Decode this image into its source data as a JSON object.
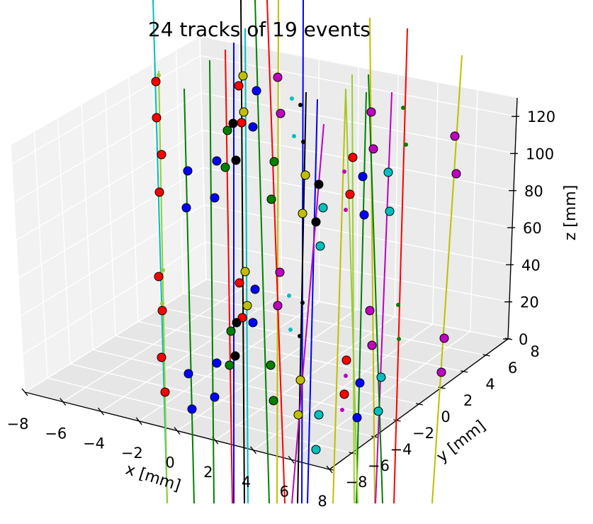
{
  "chart_data": {
    "type": "scatter",
    "subtype": "3d-tracks",
    "title": "24 tracks of 19 events",
    "xlabel": "x [mm]",
    "ylabel": "y [mm]",
    "zlabel": "z [mm]",
    "xlim": [
      -8,
      8
    ],
    "ylim": [
      -8,
      8
    ],
    "zlim": [
      0,
      130
    ],
    "xticks": [
      "−8",
      "−6",
      "−4",
      "−2",
      "0",
      "2",
      "4",
      "6",
      "8"
    ],
    "yticks": [
      "−8",
      "−6",
      "−4",
      "−2",
      "0",
      "2",
      "4",
      "6",
      "8"
    ],
    "zticks": [
      "0",
      "20",
      "40",
      "60",
      "80",
      "100",
      "120"
    ],
    "grid": true,
    "pane_color": "#f2f2f2",
    "tracks": [
      {
        "color": "#00bfbf",
        "top": [
          216,
          0
        ],
        "bottom": [
          236,
          710
        ]
      },
      {
        "color": "#9acd32",
        "top": [
          224,
          100
        ],
        "bottom": [
          236,
          710
        ]
      },
      {
        "color": "#008000",
        "top": [
          260,
          125
        ],
        "bottom": [
          274,
          710
        ]
      },
      {
        "color": "#008000",
        "top": [
          296,
          85
        ],
        "bottom": [
          302,
          710
        ]
      },
      {
        "color": "#ff0000",
        "top": [
          318,
          70
        ],
        "bottom": [
          328,
          710
        ]
      },
      {
        "color": "#0000ff",
        "top": [
          330,
          60
        ],
        "bottom": [
          330,
          710
        ]
      },
      {
        "color": "#000000",
        "top": [
          340,
          0
        ],
        "bottom": [
          345,
          710
        ]
      },
      {
        "color": "#00bfbf",
        "top": [
          346,
          40
        ],
        "bottom": [
          350,
          710
        ]
      },
      {
        "color": "#008000",
        "top": [
          360,
          0
        ],
        "bottom": [
          380,
          710
        ]
      },
      {
        "color": "#bfbf00",
        "top": [
          393,
          0
        ],
        "bottom": [
          391,
          710
        ]
      },
      {
        "color": "#ff0000",
        "top": [
          377,
          0
        ],
        "bottom": [
          402,
          710
        ]
      },
      {
        "color": "#0000ff",
        "top": [
          428,
          0
        ],
        "bottom": [
          426,
          710
        ]
      },
      {
        "color": "#000000",
        "top": [
          432,
          130
        ],
        "bottom": [
          420,
          710
        ]
      },
      {
        "color": "#0000ff",
        "top": [
          448,
          140
        ],
        "bottom": [
          434,
          710
        ]
      },
      {
        "color": "#bf00bf",
        "top": [
          457,
          175
        ],
        "bottom": [
          412,
          710
        ]
      },
      {
        "color": "#bfbf00",
        "top": [
          488,
          125
        ],
        "bottom": [
          470,
          710
        ]
      },
      {
        "color": "#9acd32",
        "top": [
          497,
          105
        ],
        "bottom": [
          500,
          710
        ]
      },
      {
        "color": "#008000",
        "top": [
          517,
          130
        ],
        "bottom": [
          503,
          710
        ]
      },
      {
        "color": "#bfbf00",
        "top": [
          522,
          25
        ],
        "bottom": [
          529,
          710
        ]
      },
      {
        "color": "#bf00bf",
        "top": [
          553,
          130
        ],
        "bottom": [
          530,
          710
        ]
      },
      {
        "color": "#ff0000",
        "top": [
          575,
          40
        ],
        "bottom": [
          556,
          710
        ]
      },
      {
        "color": "#008000",
        "top": [
          520,
          105
        ],
        "bottom": [
          540,
          710
        ]
      },
      {
        "color": "#bfbf00",
        "top": [
          652,
          78
        ],
        "bottom": [
          610,
          710
        ]
      },
      {
        "color": "#9acd32",
        "top": [
          488,
          125
        ],
        "bottom": [
          505,
          710
        ]
      }
    ],
    "hits": [
      {
        "c": "#ff0000",
        "p": [
          220,
          115
        ]
      },
      {
        "c": "#9acd32",
        "p": [
          224,
          106
        ],
        "s": 3
      },
      {
        "c": "#ff0000",
        "p": [
          221,
          166
        ]
      },
      {
        "c": "#ff0000",
        "p": [
          228,
          218
        ]
      },
      {
        "c": "#ff0000",
        "p": [
          225,
          271
        ]
      },
      {
        "c": "#ff0000",
        "p": [
          224,
          390
        ]
      },
      {
        "c": "#9acd32",
        "p": [
          230,
          381
        ],
        "s": 3
      },
      {
        "c": "#9acd32",
        "p": [
          229,
          428
        ],
        "s": 3
      },
      {
        "c": "#ff0000",
        "p": [
          229,
          438
        ]
      },
      {
        "c": "#ff0000",
        "p": [
          228,
          504
        ]
      },
      {
        "c": "#ff0000",
        "p": [
          233,
          553
        ]
      },
      {
        "c": "#0000ff",
        "p": [
          265,
          241
        ]
      },
      {
        "c": "#0000ff",
        "p": [
          263,
          293
        ]
      },
      {
        "c": "#0000ff",
        "p": [
          266,
          527
        ]
      },
      {
        "c": "#0000ff",
        "p": [
          271,
          577
        ]
      },
      {
        "c": "#0000ff",
        "p": [
          306,
          227
        ]
      },
      {
        "c": "#0000ff",
        "p": [
          303,
          279
        ]
      },
      {
        "c": "#0000ff",
        "p": [
          306,
          512
        ]
      },
      {
        "c": "#0000ff",
        "p": [
          303,
          560
        ]
      },
      {
        "c": "#008000",
        "p": [
          321,
          184
        ]
      },
      {
        "c": "#008000",
        "p": [
          318,
          236
        ]
      },
      {
        "c": "#008000",
        "p": [
          326,
          467
        ]
      },
      {
        "c": "#008000",
        "p": [
          324,
          515
        ]
      },
      {
        "c": "#ff0000",
        "p": [
          337,
          121
        ]
      },
      {
        "c": "#ff0000",
        "p": [
          341,
          173
        ]
      },
      {
        "c": "#ff0000",
        "p": [
          338,
          399
        ]
      },
      {
        "c": "#ff0000",
        "p": [
          342,
          448
        ]
      },
      {
        "c": "#bfbf00",
        "p": [
          343,
          107
        ]
      },
      {
        "c": "#bfbf00",
        "p": [
          344,
          158
        ]
      },
      {
        "c": "#bfbf00",
        "p": [
          346,
          383
        ]
      },
      {
        "c": "#bfbf00",
        "p": [
          349,
          431
        ]
      },
      {
        "c": "#000000",
        "p": [
          329,
          174
        ]
      },
      {
        "c": "#000000",
        "p": [
          333,
          226
        ]
      },
      {
        "c": "#000000",
        "p": [
          334,
          455
        ]
      },
      {
        "c": "#000000",
        "p": [
          332,
          502
        ]
      },
      {
        "c": "#0000ff",
        "p": [
          362,
          128
        ]
      },
      {
        "c": "#0000ff",
        "p": [
          357,
          179
        ]
      },
      {
        "c": "#0000ff",
        "p": [
          360,
          408
        ]
      },
      {
        "c": "#0000ff",
        "p": [
          357,
          455
        ]
      },
      {
        "c": "#008000",
        "p": [
          387,
          228
        ]
      },
      {
        "c": "#008000",
        "p": [
          383,
          281
        ]
      },
      {
        "c": "#008000",
        "p": [
          382,
          515
        ]
      },
      {
        "c": "#008000",
        "p": [
          386,
          565
        ]
      },
      {
        "c": "#bf00bf",
        "p": [
          392,
          109
        ]
      },
      {
        "c": "#bf00bf",
        "p": [
          396,
          160
        ]
      },
      {
        "c": "#bf00bf",
        "p": [
          395,
          384
        ]
      },
      {
        "c": "#bf00bf",
        "p": [
          392,
          431
        ]
      },
      {
        "c": "#00bfbf",
        "p": [
          412,
          139
        ],
        "s": 3
      },
      {
        "c": "#00bfbf",
        "p": [
          415,
          192
        ],
        "s": 3
      },
      {
        "c": "#00bfbf",
        "p": [
          408,
          417
        ],
        "s": 3
      },
      {
        "c": "#00bfbf",
        "p": [
          410,
          465
        ],
        "s": 3
      },
      {
        "c": "#000000",
        "p": [
          424,
          148
        ],
        "s": 3
      },
      {
        "c": "#000000",
        "p": [
          428,
          200
        ],
        "s": 3
      },
      {
        "c": "#000000",
        "p": [
          427,
          427
        ],
        "s": 3
      },
      {
        "c": "#000000",
        "p": [
          423,
          474
        ],
        "s": 3
      },
      {
        "c": "#bfbf00",
        "p": [
          431,
          247
        ]
      },
      {
        "c": "#bfbf00",
        "p": [
          427,
          301
        ]
      },
      {
        "c": "#bfbf00",
        "p": [
          424,
          536
        ]
      },
      {
        "c": "#bfbf00",
        "p": [
          421,
          585
        ]
      },
      {
        "c": "#000000",
        "p": [
          450,
          260
        ]
      },
      {
        "c": "#000000",
        "p": [
          446,
          313
        ]
      },
      {
        "c": "#00bfbf",
        "p": [
          456,
          293
        ]
      },
      {
        "c": "#00bfbf",
        "p": [
          452,
          347
        ]
      },
      {
        "c": "#00bfbf",
        "p": [
          450,
          585
        ]
      },
      {
        "c": "#00bfbf",
        "p": [
          446,
          634
        ]
      },
      {
        "c": "#bf00bf",
        "p": [
          486,
          242
        ],
        "s": 3
      },
      {
        "c": "#bf00bf",
        "p": [
          488,
          296
        ],
        "s": 3
      },
      {
        "c": "#bf00bf",
        "p": [
          488,
          530
        ],
        "s": 3
      },
      {
        "c": "#bf00bf",
        "p": [
          483,
          578
        ],
        "s": 3
      },
      {
        "c": "#ff0000",
        "p": [
          498,
          222
        ]
      },
      {
        "c": "#ff0000",
        "p": [
          494,
          274
        ]
      },
      {
        "c": "#ff0000",
        "p": [
          489,
          508
        ]
      },
      {
        "c": "#ff0000",
        "p": [
          486,
          556
        ]
      },
      {
        "c": "#0000ff",
        "p": [
          512,
          249
        ]
      },
      {
        "c": "#0000ff",
        "p": [
          514,
          303
        ]
      },
      {
        "c": "#0000ff",
        "p": [
          508,
          540
        ]
      },
      {
        "c": "#0000ff",
        "p": [
          504,
          589
        ]
      },
      {
        "c": "#bf00bf",
        "p": [
          524,
          158
        ]
      },
      {
        "c": "#bf00bf",
        "p": [
          527,
          210
        ]
      },
      {
        "c": "#bf00bf",
        "p": [
          522,
          438
        ]
      },
      {
        "c": "#bf00bf",
        "p": [
          525,
          487
        ]
      },
      {
        "c": "#00bfbf",
        "p": [
          548,
          243
        ]
      },
      {
        "c": "#00bfbf",
        "p": [
          550,
          298
        ]
      },
      {
        "c": "#00bfbf",
        "p": [
          538,
          532
        ]
      },
      {
        "c": "#00bfbf",
        "p": [
          534,
          580
        ]
      },
      {
        "c": "#008000",
        "p": [
          569,
          152
        ],
        "s": 3
      },
      {
        "c": "#008000",
        "p": [
          573,
          204
        ],
        "s": 3
      },
      {
        "c": "#008000",
        "p": [
          562,
          430
        ],
        "s": 3
      },
      {
        "c": "#008000",
        "p": [
          563,
          478
        ],
        "s": 3
      },
      {
        "c": "#bf00bf",
        "p": [
          642,
          192
        ]
      },
      {
        "c": "#bf00bf",
        "p": [
          644,
          245
        ]
      },
      {
        "c": "#bf00bf",
        "p": [
          627,
          477
        ]
      },
      {
        "c": "#bf00bf",
        "p": [
          623,
          525
        ]
      }
    ]
  }
}
